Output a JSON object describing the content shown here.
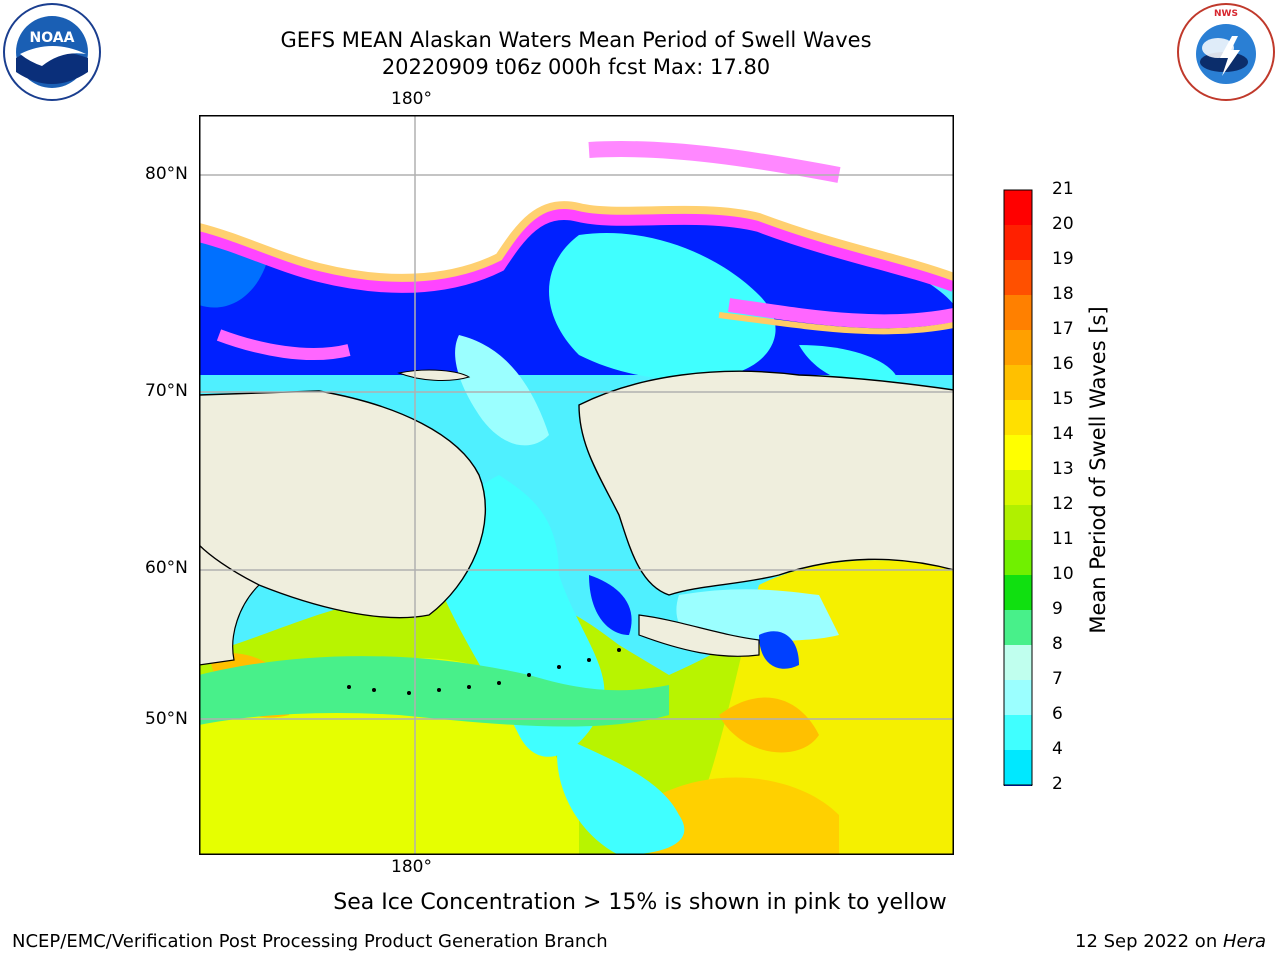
{
  "title": {
    "line1": "GEFS MEAN Alaskan Waters Mean Period of Swell Waves",
    "line2": "20220909 t06z 000h fcst   Max: 17.80"
  },
  "logos": {
    "left": {
      "name": "noaa-logo",
      "text": "NOAA"
    },
    "right": {
      "name": "nws-logo",
      "text": "NATIONAL WEATHER SERVICE"
    }
  },
  "map": {
    "lon_labels": {
      "top": "180°",
      "bottom": "180°"
    },
    "lat_labels": [
      "80°N",
      "70°N",
      "60°N",
      "50°N"
    ]
  },
  "colorbar": {
    "title": "Mean Period of Swell Waves [s]",
    "levels": [
      "2",
      "4",
      "6",
      "7",
      "8",
      "9",
      "10",
      "11",
      "12",
      "13",
      "14",
      "15",
      "16",
      "17",
      "18",
      "19",
      "20",
      "21"
    ],
    "colors": [
      "#0070ff",
      "#00e8ff",
      "#40ffff",
      "#9bffff",
      "#c0ffee",
      "#48f08a",
      "#10e010",
      "#70f000",
      "#b0f000",
      "#d8f800",
      "#ffff00",
      "#ffe000",
      "#ffc000",
      "#ffa000",
      "#ff8000",
      "#ff5000",
      "#ff2000",
      "#ff0000"
    ],
    "extend_color": "#0020ff"
  },
  "note": "Sea Ice Concentration > 15% is shown in pink to yellow",
  "footer": {
    "left": "NCEP/EMC/Verification Post Processing Product Generation Branch",
    "right_date": "12 Sep 2022 on ",
    "right_host": "Hera"
  },
  "colors": {
    "land": "#efeedd",
    "ocean_low": "#0000ff",
    "ocean_mid": "#40ffff",
    "ocean_high": "#ffff00",
    "ice_edge": "#ff44ff"
  }
}
